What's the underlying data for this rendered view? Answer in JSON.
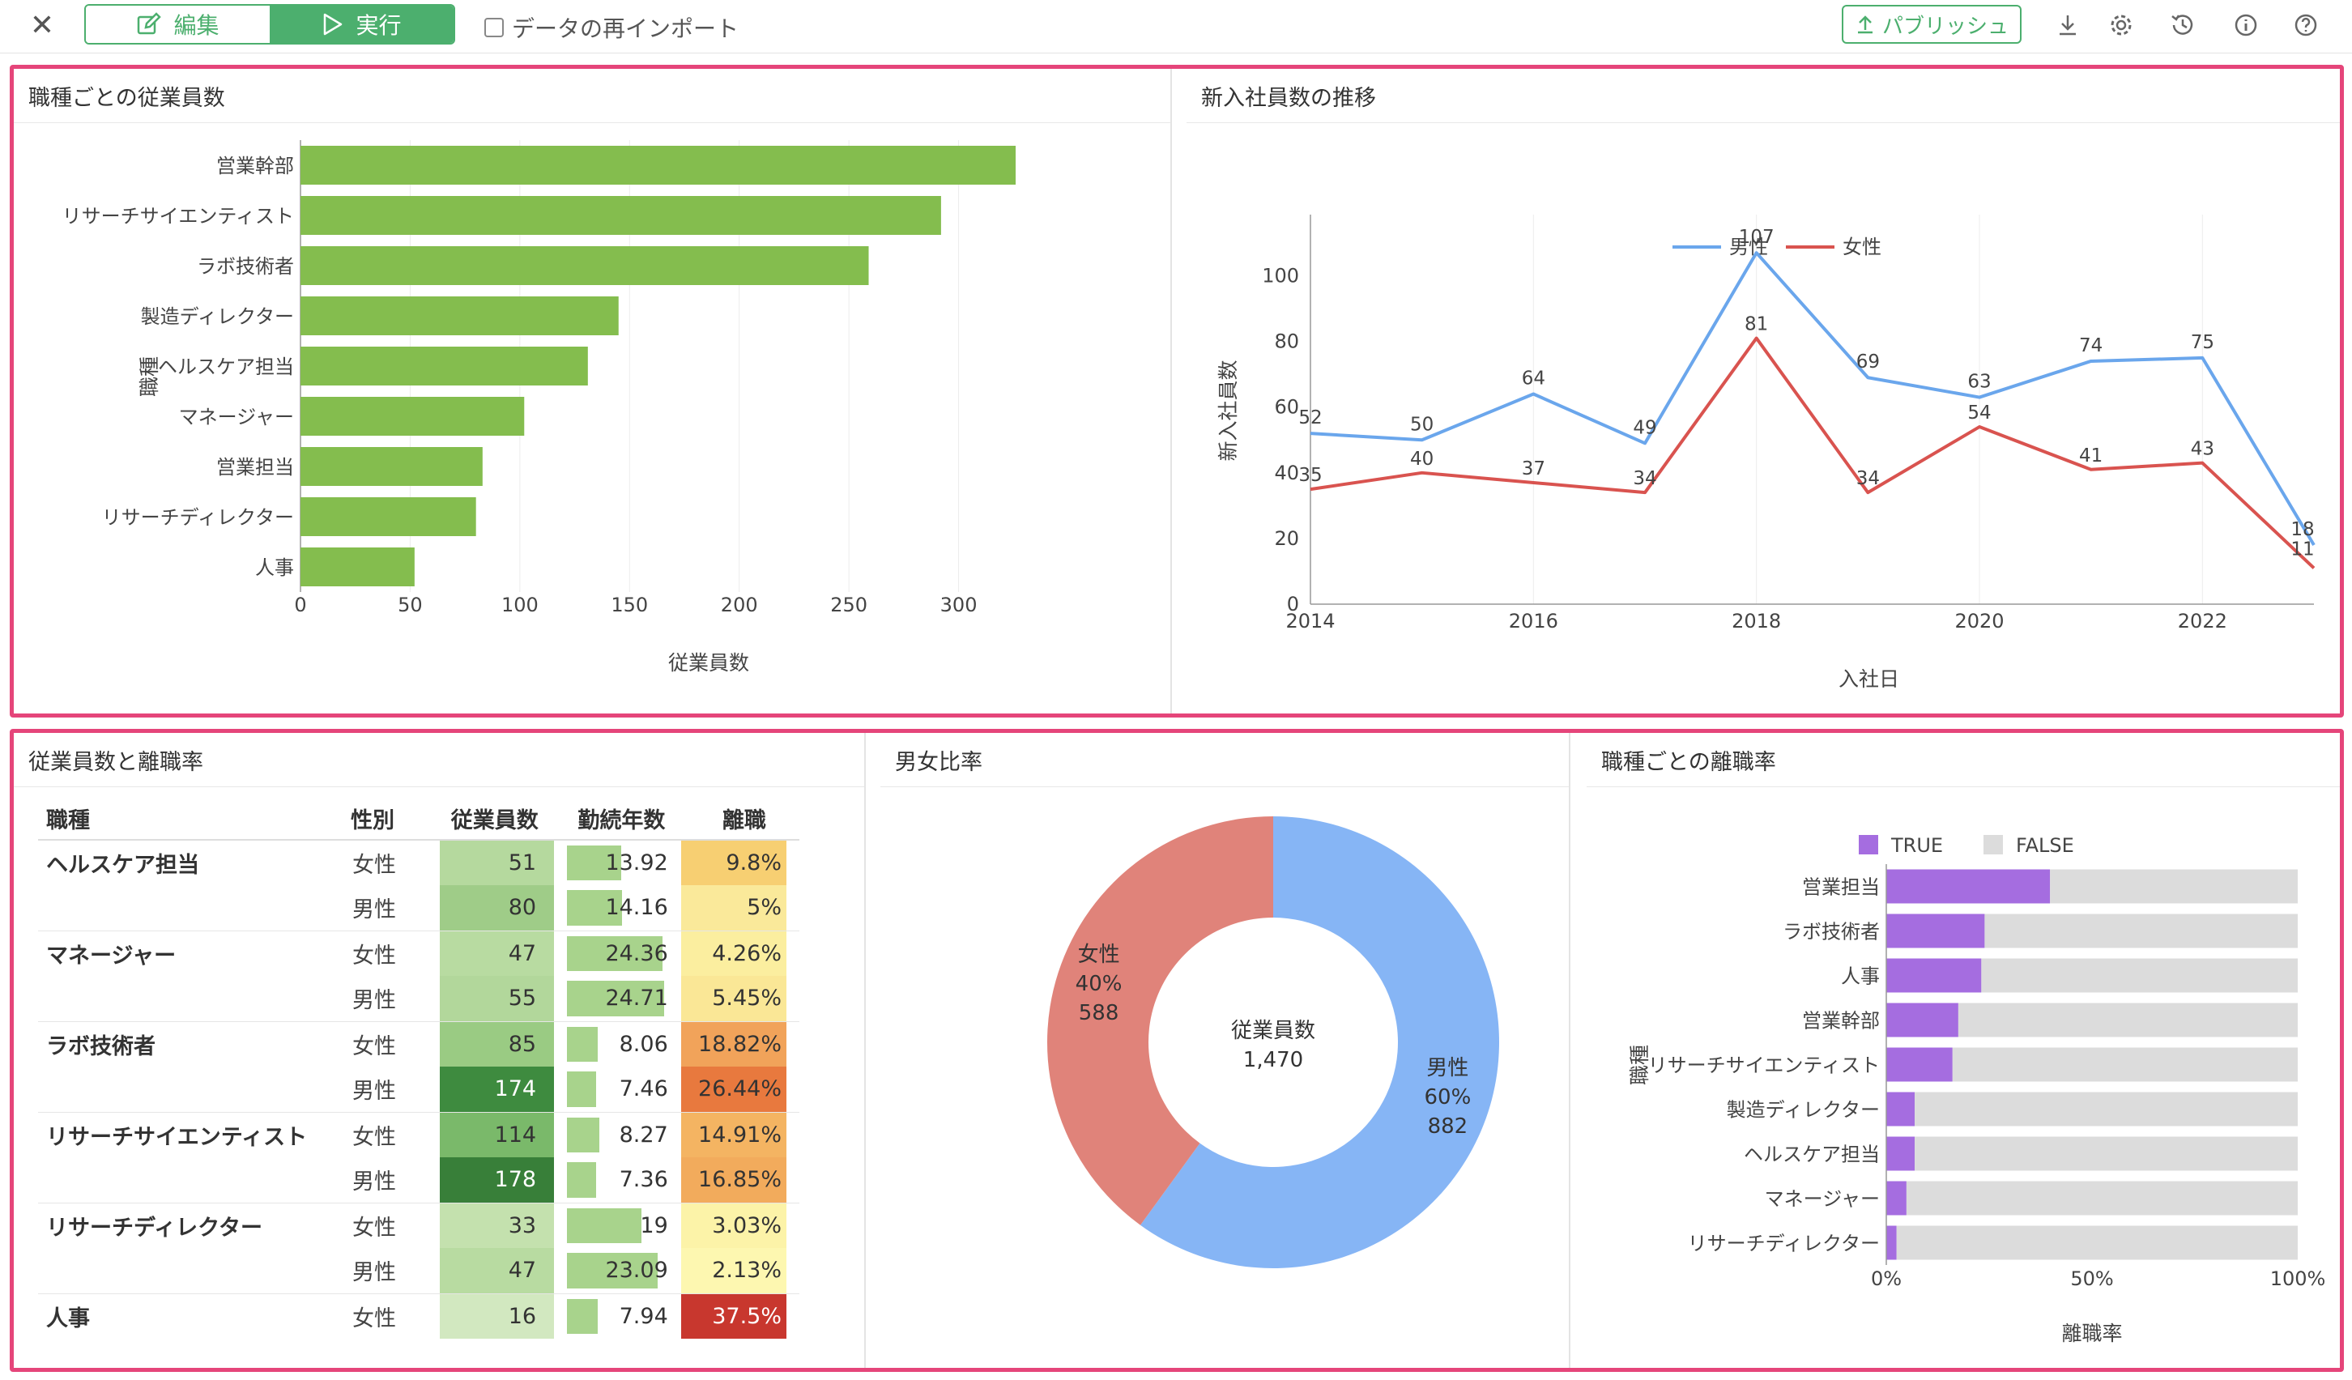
{
  "toolbar": {
    "edit_label": "編集",
    "run_label": "実行",
    "reimport_label": "データの再インポート",
    "publish_label": "パブリッシュ"
  },
  "panels": {
    "bar_title": "職種ごとの従業員数",
    "line_title": "新入社員数の推移",
    "table_title": "従業員数と離職率",
    "donut_title": "男女比率",
    "stack_title": "職種ごとの離職率"
  },
  "chart_data": [
    {
      "type": "bar",
      "title": "職種ごとの従業員数",
      "orientation": "horizontal",
      "ylabel": "職種",
      "xlabel": "従業員数",
      "categories": [
        "営業幹部",
        "リサーチサイエンティスト",
        "ラボ技術者",
        "製造ディレクター",
        "ヘルスケア担当",
        "マネージャー",
        "営業担当",
        "リサーチディレクター",
        "人事"
      ],
      "values": [
        326,
        292,
        259,
        145,
        131,
        102,
        83,
        80,
        52
      ],
      "xlim": [
        0,
        350
      ],
      "xticks": [
        0,
        50,
        100,
        150,
        200,
        250,
        300
      ],
      "color": "#84bd4e",
      "grid": true
    },
    {
      "type": "line",
      "title": "新入社員数の推移",
      "xlabel": "入社日",
      "ylabel": "新入社員数",
      "x": [
        2014,
        2015,
        2016,
        2017,
        2018,
        2019,
        2020,
        2021,
        2022,
        2023
      ],
      "xlim": [
        2014,
        2023
      ],
      "xticks": [
        2014,
        2016,
        2018,
        2020,
        2022
      ],
      "ylim": [
        0,
        110
      ],
      "yticks": [
        0,
        20,
        40,
        60,
        80,
        100
      ],
      "legend": "top-center",
      "series": [
        {
          "name": "男性",
          "color": "#6aa6ec",
          "values": [
            52,
            50,
            64,
            49,
            107,
            69,
            63,
            74,
            75,
            18
          ]
        },
        {
          "name": "女性",
          "color": "#d9534f",
          "values": [
            35,
            40,
            37,
            34,
            81,
            34,
            54,
            41,
            43,
            11
          ]
        }
      ]
    },
    {
      "type": "pie",
      "title": "男女比率",
      "center_label": "従業員数",
      "center_value": "1,470",
      "slices": [
        {
          "name": "男性",
          "pct": "60%",
          "value": 882,
          "color": "#86b5f5"
        },
        {
          "name": "女性",
          "pct": "40%",
          "value": 588,
          "color": "#e0837a"
        }
      ]
    },
    {
      "type": "bar",
      "stacked": "percent",
      "orientation": "horizontal",
      "title": "職種ごとの離職率",
      "ylabel": "職種",
      "xlabel": "離職率",
      "xticks": [
        "0%",
        "50%",
        "100%"
      ],
      "legend": "top",
      "categories": [
        "営業担当",
        "ラボ技術者",
        "人事",
        "営業幹部",
        "リサーチサイエンティスト",
        "製造ディレクター",
        "ヘルスケア担当",
        "マネージャー",
        "リサーチディレクター"
      ],
      "series": [
        {
          "name": "TRUE",
          "color": "#a56de0",
          "values": [
            39.8,
            23.9,
            23.1,
            17.5,
            16.1,
            6.9,
            6.9,
            4.9,
            2.5
          ]
        },
        {
          "name": "FALSE",
          "color": "#dcdcdc",
          "values": [
            60.2,
            76.1,
            76.9,
            82.5,
            83.9,
            93.1,
            93.1,
            95.1,
            97.5
          ]
        }
      ]
    }
  ],
  "table": {
    "headers": [
      "職種",
      "性別",
      "従業員数",
      "勤続年数",
      "離職"
    ],
    "rows": [
      {
        "job": "ヘルスケア担当",
        "gender": "女性",
        "count": "51",
        "count_color": "#b5d99e",
        "tenure": "13.92",
        "tenure_frac": 0.56,
        "rate": "9.8%",
        "rate_color": "#f7cf72"
      },
      {
        "job": "",
        "gender": "男性",
        "count": "80",
        "count_color": "#9fcc88",
        "tenure": "14.16",
        "tenure_frac": 0.57,
        "rate": "5%",
        "rate_color": "#fae99a"
      },
      {
        "job": "マネージャー",
        "gender": "女性",
        "count": "47",
        "count_color": "#b8dba1",
        "tenure": "24.36",
        "tenure_frac": 0.98,
        "rate": "4.26%",
        "rate_color": "#fbee9f"
      },
      {
        "job": "",
        "gender": "男性",
        "count": "55",
        "count_color": "#b2d79b",
        "tenure": "24.71",
        "tenure_frac": 1.0,
        "rate": "5.45%",
        "rate_color": "#fae796"
      },
      {
        "job": "ラボ技術者",
        "gender": "女性",
        "count": "85",
        "count_color": "#9acb83",
        "tenure": "8.06",
        "tenure_frac": 0.32,
        "rate": "18.82%",
        "rate_color": "#f1a35a"
      },
      {
        "job": "",
        "gender": "男性",
        "count": "174",
        "count_color": "#3e8b3f",
        "tenure": "7.46",
        "tenure_frac": 0.3,
        "rate": "26.44%",
        "rate_color": "#e8793e"
      },
      {
        "job": "リサーチサイエンティスト",
        "gender": "女性",
        "count": "114",
        "count_color": "#7ab96a",
        "tenure": "8.27",
        "tenure_frac": 0.33,
        "rate": "14.91%",
        "rate_color": "#f4b462"
      },
      {
        "job": "",
        "gender": "男性",
        "count": "178",
        "count_color": "#387f39",
        "tenure": "7.36",
        "tenure_frac": 0.3,
        "rate": "16.85%",
        "rate_color": "#f2ab5c"
      },
      {
        "job": "リサーチディレクター",
        "gender": "女性",
        "count": "33",
        "count_color": "#c4e1ae",
        "tenure": "19",
        "tenure_frac": 0.77,
        "rate": "3.03%",
        "rate_color": "#fcf3a8"
      },
      {
        "job": "",
        "gender": "男性",
        "count": "47",
        "count_color": "#b8dba1",
        "tenure": "23.09",
        "tenure_frac": 0.93,
        "rate": "2.13%",
        "rate_color": "#fdf7b0"
      },
      {
        "job": "人事",
        "gender": "女性",
        "count": "16",
        "count_color": "#d2e8c0",
        "tenure": "7.94",
        "tenure_frac": 0.32,
        "rate": "37.5%",
        "rate_color": "#c8372e"
      }
    ]
  }
}
